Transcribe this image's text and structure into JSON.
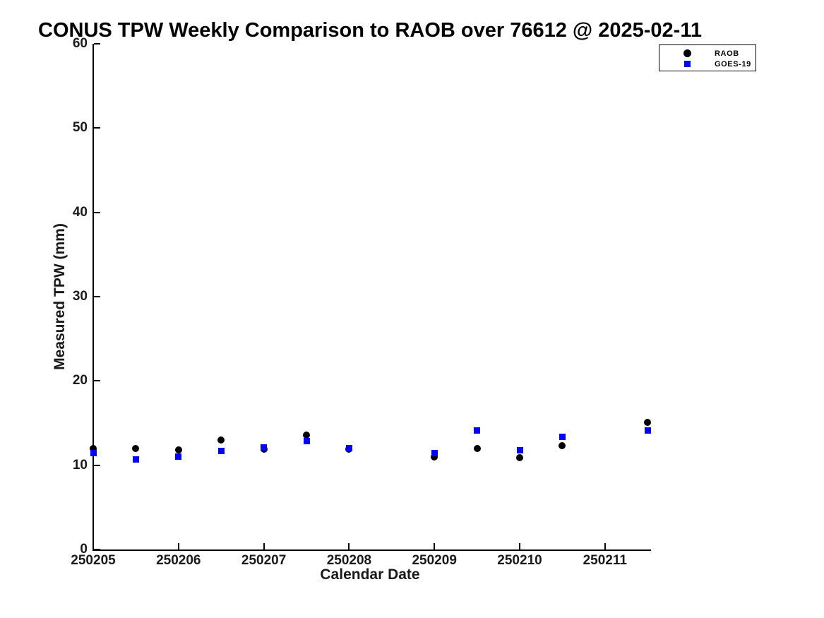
{
  "figure": {
    "title": "CONUS TPW Weekly Comparison to RAOB over 76612 @ 2025-02-11"
  },
  "chart_data": {
    "type": "scatter",
    "title": "CONUS TPW Weekly Comparison to RAOB over 76612 @ 2025-02-11",
    "xlabel": "Calendar Date",
    "ylabel": "Measured TPW (mm)",
    "x_tick_labels": [
      "250205",
      "250206",
      "250207",
      "250208",
      "250209",
      "250210",
      "250211"
    ],
    "x_tick_days": [
      0,
      1,
      2,
      3,
      4,
      5,
      6
    ],
    "xlim_days": [
      0,
      6.55
    ],
    "ylim": [
      0,
      60
    ],
    "y_ticks": [
      0,
      10,
      20,
      30,
      40,
      50,
      60
    ],
    "grid": false,
    "legend_position": "top-right",
    "x_days": [
      0,
      0.5,
      1,
      1.5,
      2,
      2.5,
      3,
      4,
      4.5,
      5,
      5.5,
      6.5
    ],
    "series": [
      {
        "name": "RAOB",
        "marker": "circle",
        "color": "#000000",
        "values": [
          12.0,
          12.0,
          11.8,
          13.0,
          11.9,
          13.6,
          11.9,
          11.0,
          12.0,
          10.9,
          12.3,
          15.1
        ]
      },
      {
        "name": "GOES-19",
        "marker": "square",
        "color": "#0000ff",
        "values": [
          11.4,
          10.7,
          11.0,
          11.7,
          12.1,
          12.9,
          12.0,
          11.4,
          14.1,
          11.8,
          13.4,
          14.1
        ]
      }
    ]
  },
  "legend": {
    "entries": [
      {
        "label": "RAOB",
        "marker": "circle",
        "color": "#000000"
      },
      {
        "label": "GOES-19",
        "marker": "square",
        "color": "#0000ff"
      }
    ]
  }
}
